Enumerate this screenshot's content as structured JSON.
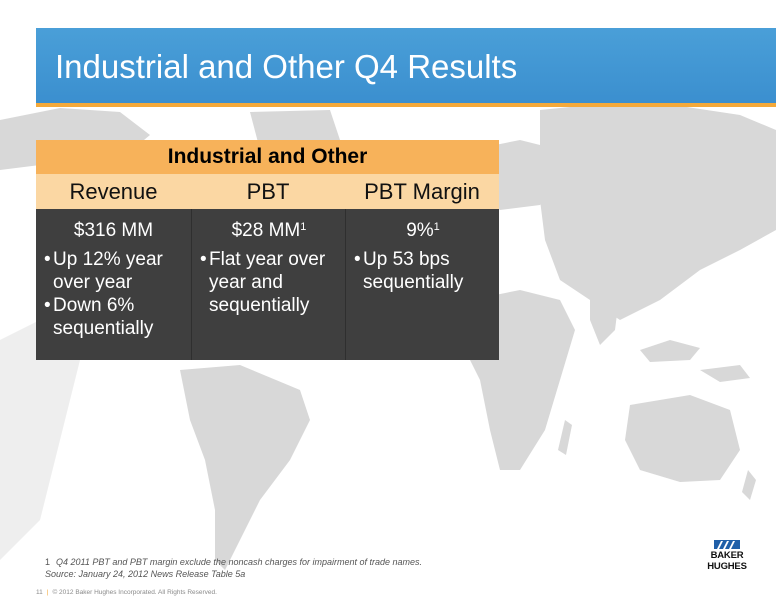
{
  "slide": {
    "title": "Industrial and Other Q4 Results"
  },
  "table": {
    "title": "Industrial and Other",
    "columns": [
      "Revenue",
      "PBT",
      "PBT Margin"
    ],
    "metrics": [
      {
        "value": "$316 MM",
        "footnote": ""
      },
      {
        "value": "$28 MM",
        "footnote": "1"
      },
      {
        "value": "9%",
        "footnote": "1"
      }
    ],
    "bullets": [
      [
        "Up 12% year over year",
        "Down 6% sequentially"
      ],
      [
        "Flat year over year and sequentially"
      ],
      [
        "Up 53 bps sequentially"
      ]
    ],
    "bullet_char": "•"
  },
  "footer": {
    "footnote_number": "1",
    "footnote_text": "Q4 2011 PBT and PBT margin exclude the noncash charges for impairment of trade names.",
    "source_text": "Source: January 24, 2012 News Release Table 5a",
    "page_number": "11",
    "separator": "|",
    "copyright": "© 2012 Baker Hughes Incorporated. All Rights Reserved."
  },
  "logo": {
    "line1": "BAKER",
    "line2": "HUGHES"
  },
  "colors": {
    "title_bar": "#3b8fcf",
    "accent": "#f4a93a",
    "table_title": "#f7b25a",
    "table_header": "#fbd7a3",
    "table_body": "#3f3f3f",
    "map": "#d6d6d6"
  }
}
